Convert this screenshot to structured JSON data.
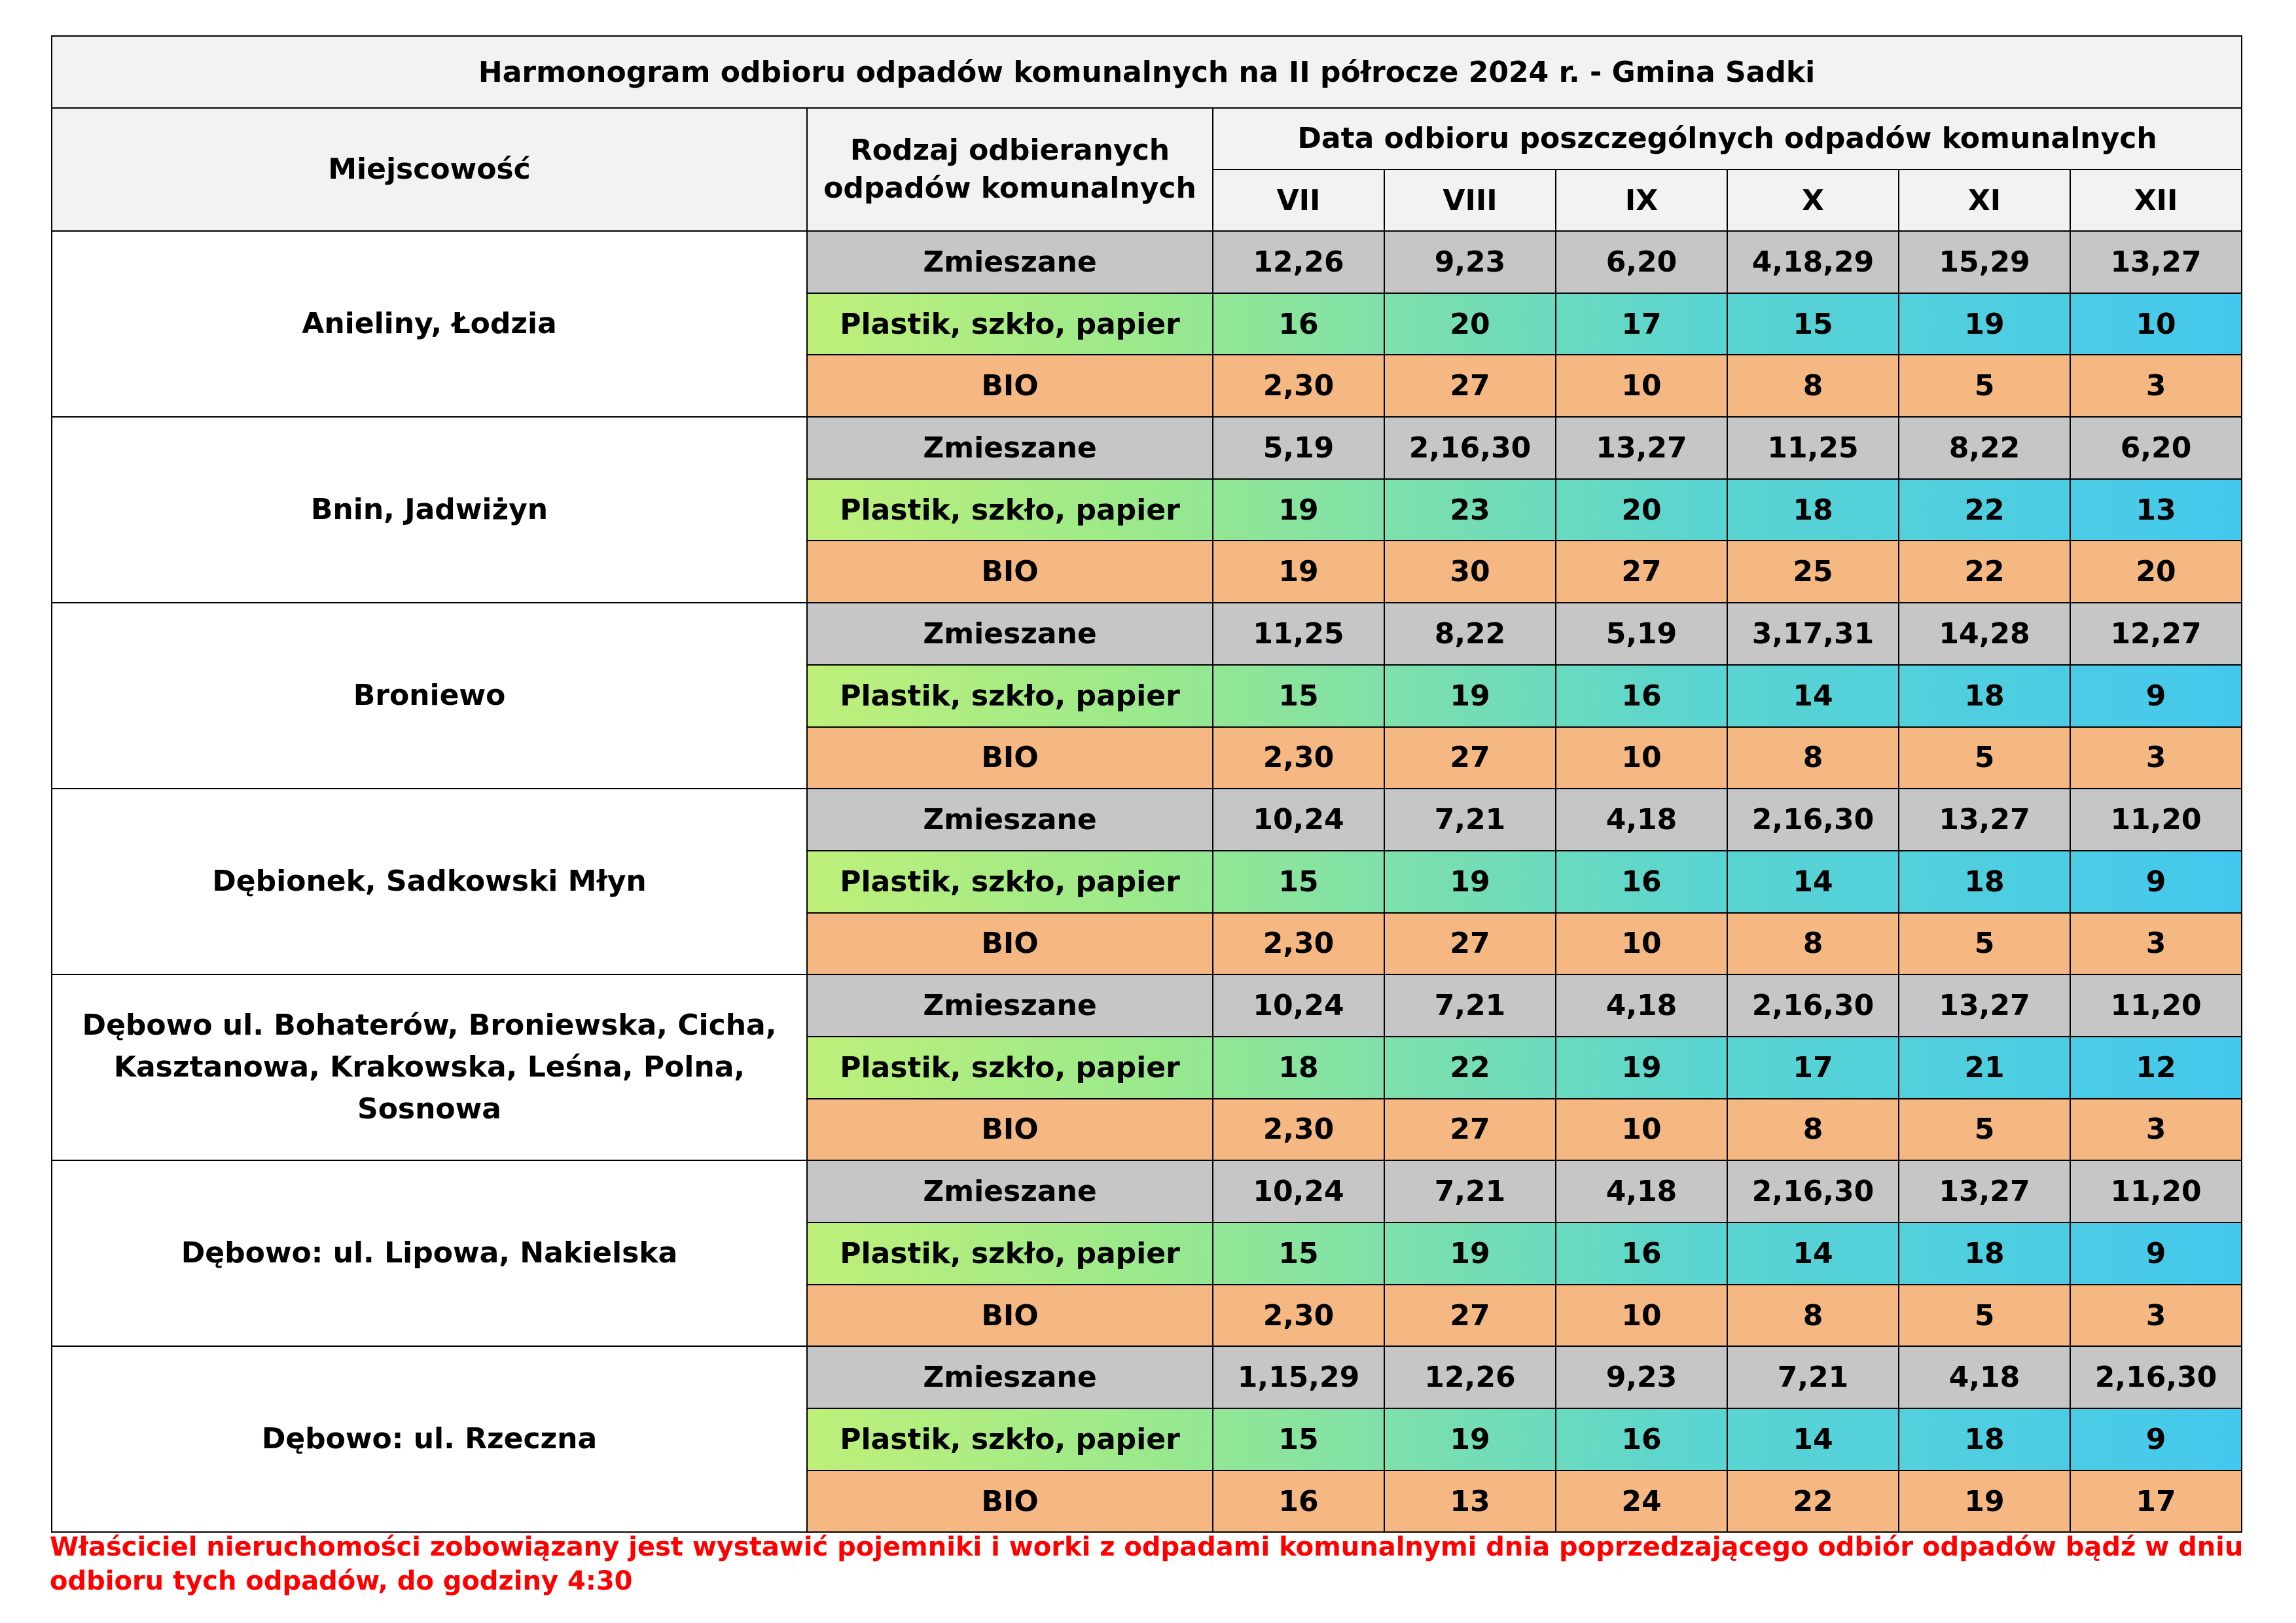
{
  "title": "Harmonogram odbioru odpadów komunalnych na II półrocze 2024 r. - Gmina Sadki",
  "headers": {
    "place": "Miejscowość",
    "waste_type_line1": "Rodzaj odbieranych",
    "waste_type_line2": "odpadów komunalnych",
    "dates": "Data odbioru poszczególnych odpadów komunalnych"
  },
  "months": [
    "VII",
    "VIII",
    "IX",
    "X",
    "XI",
    "XII"
  ],
  "colors": {
    "header_bg": "#f2f2f2",
    "mixed_bg": "#c6c6c6",
    "plastic_gradient": [
      "#f9f871",
      "#44c8ee"
    ],
    "bio_bg": "#f6b882",
    "note_color": "#ff0000"
  },
  "groups": [
    {
      "place_lines": [
        "Anieliny, Łodzia"
      ],
      "rows": [
        {
          "type": "Zmieszane",
          "kind": "mixed",
          "dates": [
            "12,26",
            "9,23",
            "6,20",
            "4,18,29",
            "15,29",
            "13,27"
          ]
        },
        {
          "type": "Plastik, szkło, papier",
          "kind": "plastic",
          "dates": [
            "16",
            "20",
            "17",
            "15",
            "19",
            "10"
          ]
        },
        {
          "type": "BIO",
          "kind": "bio",
          "dates": [
            "2,30",
            "27",
            "10",
            "8",
            "5",
            "3"
          ]
        }
      ]
    },
    {
      "place_lines": [
        "Bnin, Jadwiżyn"
      ],
      "rows": [
        {
          "type": "Zmieszane",
          "kind": "mixed",
          "dates": [
            "5,19",
            "2,16,30",
            "13,27",
            "11,25",
            "8,22",
            "6,20"
          ]
        },
        {
          "type": "Plastik, szkło, papier",
          "kind": "plastic",
          "dates": [
            "19",
            "23",
            "20",
            "18",
            "22",
            "13"
          ]
        },
        {
          "type": "BIO",
          "kind": "bio",
          "dates": [
            "19",
            "30",
            "27",
            "25",
            "22",
            "20"
          ]
        }
      ]
    },
    {
      "place_lines": [
        "Broniewo"
      ],
      "rows": [
        {
          "type": "Zmieszane",
          "kind": "mixed",
          "dates": [
            "11,25",
            "8,22",
            "5,19",
            "3,17,31",
            "14,28",
            "12,27"
          ]
        },
        {
          "type": "Plastik, szkło, papier",
          "kind": "plastic",
          "dates": [
            "15",
            "19",
            "16",
            "14",
            "18",
            "9"
          ]
        },
        {
          "type": "BIO",
          "kind": "bio",
          "dates": [
            "2,30",
            "27",
            "10",
            "8",
            "5",
            "3"
          ]
        }
      ]
    },
    {
      "place_lines": [
        "Dębionek, Sadkowski Młyn"
      ],
      "rows": [
        {
          "type": "Zmieszane",
          "kind": "mixed",
          "dates": [
            "10,24",
            "7,21",
            "4,18",
            "2,16,30",
            "13,27",
            "11,20"
          ]
        },
        {
          "type": "Plastik, szkło, papier",
          "kind": "plastic",
          "dates": [
            "15",
            "19",
            "16",
            "14",
            "18",
            "9"
          ]
        },
        {
          "type": "BIO",
          "kind": "bio",
          "dates": [
            "2,30",
            "27",
            "10",
            "8",
            "5",
            "3"
          ]
        }
      ]
    },
    {
      "place_lines": [
        "Dębowo ul. Bohaterów, Broniewska, Cicha,",
        "Kasztanowa, Krakowska, Leśna, Polna, Sosnowa"
      ],
      "rows": [
        {
          "type": "Zmieszane",
          "kind": "mixed",
          "dates": [
            "10,24",
            "7,21",
            "4,18",
            "2,16,30",
            "13,27",
            "11,20"
          ]
        },
        {
          "type": "Plastik, szkło, papier",
          "kind": "plastic",
          "dates": [
            "18",
            "22",
            "19",
            "17",
            "21",
            "12"
          ]
        },
        {
          "type": "BIO",
          "kind": "bio",
          "dates": [
            "2,30",
            "27",
            "10",
            "8",
            "5",
            "3"
          ]
        }
      ]
    },
    {
      "place_lines": [
        "Dębowo: ul. Lipowa, Nakielska"
      ],
      "rows": [
        {
          "type": "Zmieszane",
          "kind": "mixed",
          "dates": [
            "10,24",
            "7,21",
            "4,18",
            "2,16,30",
            "13,27",
            "11,20"
          ]
        },
        {
          "type": "Plastik, szkło, papier",
          "kind": "plastic",
          "dates": [
            "15",
            "19",
            "16",
            "14",
            "18",
            "9"
          ]
        },
        {
          "type": "BIO",
          "kind": "bio",
          "dates": [
            "2,30",
            "27",
            "10",
            "8",
            "5",
            "3"
          ]
        }
      ]
    },
    {
      "place_lines": [
        "Dębowo: ul. Rzeczna"
      ],
      "rows": [
        {
          "type": "Zmieszane",
          "kind": "mixed",
          "dates": [
            "1,15,29",
            "12,26",
            "9,23",
            "7,21",
            "4,18",
            "2,16,30"
          ]
        },
        {
          "type": "Plastik, szkło, papier",
          "kind": "plastic",
          "dates": [
            "15",
            "19",
            "16",
            "14",
            "18",
            "9"
          ]
        },
        {
          "type": "BIO",
          "kind": "bio",
          "dates": [
            "16",
            "13",
            "24",
            "22",
            "19",
            "17"
          ]
        }
      ]
    }
  ],
  "note_line1": "Właściciel nieruchomości zobowiązany jest wystawić pojemniki i worki z odpadami komunalnymi dnia poprzedzającego odbiór odpadów bądź w dniu",
  "note_line2": "odbioru tych odpadów, do godziny 4:30"
}
